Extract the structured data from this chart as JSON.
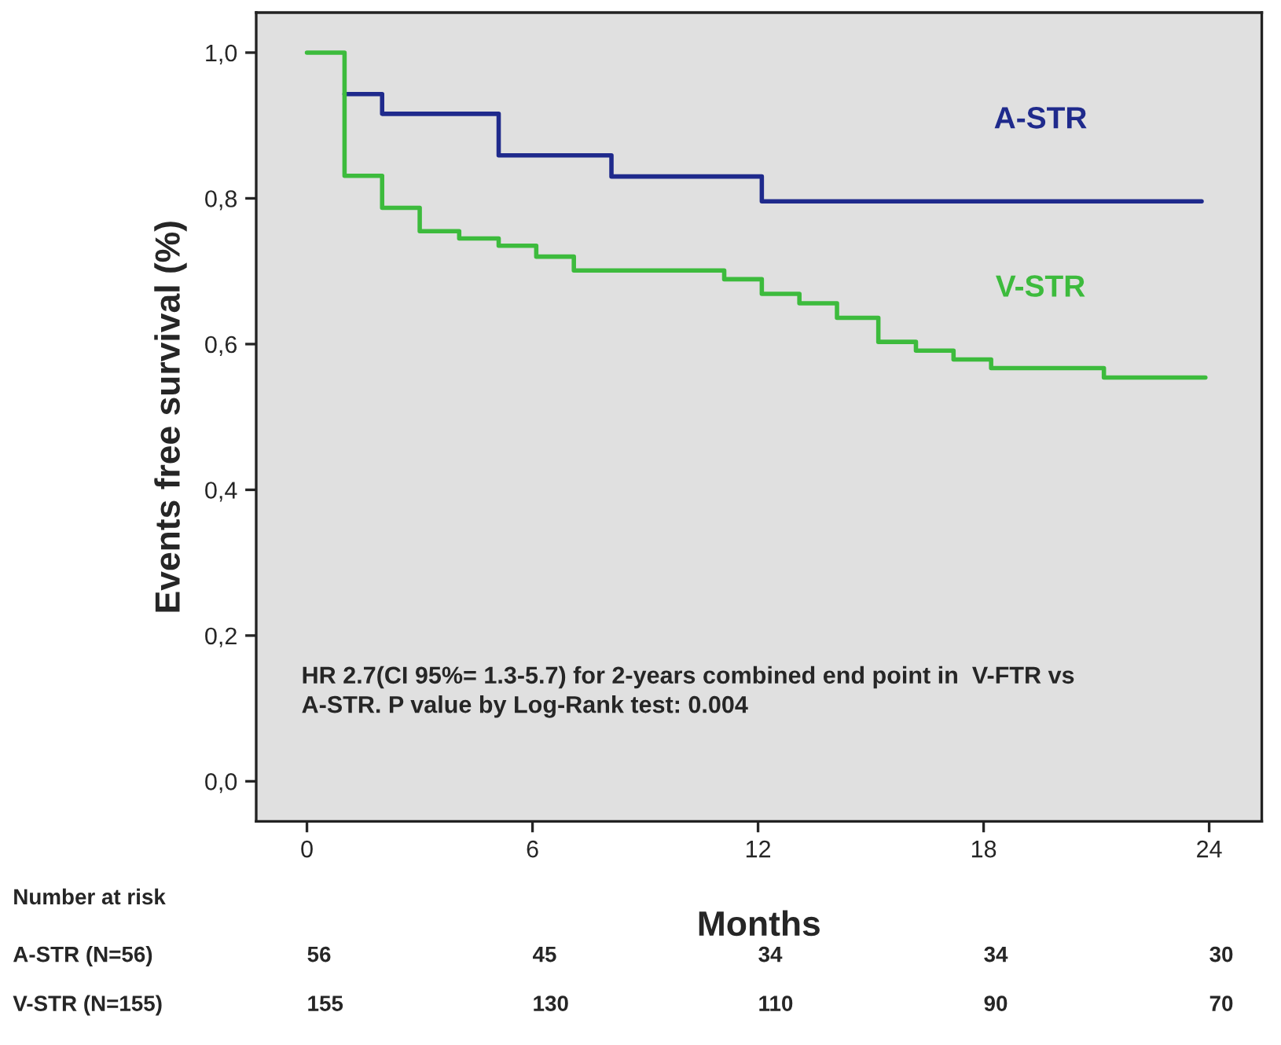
{
  "chart_data": {
    "type": "step",
    "ylabel": "Events free survival (%)",
    "xlabel": "Months",
    "xlim": [
      -1.35,
      25.4
    ],
    "xticks": [
      0,
      6,
      12,
      18,
      24
    ],
    "ylim": [
      -0.055,
      1.055
    ],
    "yticks": [
      {
        "value": 0.0,
        "label": "0,0"
      },
      {
        "value": 0.2,
        "label": "0,2"
      },
      {
        "value": 0.4,
        "label": "0,4"
      },
      {
        "value": 0.6,
        "label": "0,6"
      },
      {
        "value": 0.8,
        "label": "0,8"
      },
      {
        "value": 1.0,
        "label": "1,0"
      }
    ],
    "grid": false,
    "legend": false,
    "series": [
      {
        "name": "A-STR",
        "color": "#1f2a8c",
        "x": [
          1.0,
          2.0,
          5.1,
          8.1,
          12.1,
          23.8
        ],
        "values": [
          0.943,
          0.916,
          0.859,
          0.83,
          0.796,
          0.796
        ]
      },
      {
        "name": "V-STR",
        "color": "#3dbb3d",
        "x": [
          0,
          1.0,
          2.0,
          3.0,
          4.05,
          5.1,
          6.1,
          7.1,
          11.1,
          12.1,
          13.1,
          14.1,
          15.2,
          16.2,
          17.2,
          18.2,
          21.2,
          23.9
        ],
        "values": [
          1.0,
          0.831,
          0.787,
          0.755,
          0.745,
          0.735,
          0.72,
          0.701,
          0.689,
          0.669,
          0.656,
          0.636,
          0.603,
          0.591,
          0.579,
          0.567,
          0.554,
          0.554
        ]
      }
    ],
    "annotations": [
      "HR 2.7(CI 95%= 1.3-5.7) for 2-years combined end point in  V-FTR vs\nA-STR. P value by Log-Rank test: 0.004",
      "Number at risk",
      "A-STR (N=56)",
      "56",
      "45",
      "34",
      "34",
      "30",
      "V-STR (N=155)",
      "155",
      "130",
      "110",
      "90",
      "70"
    ]
  }
}
